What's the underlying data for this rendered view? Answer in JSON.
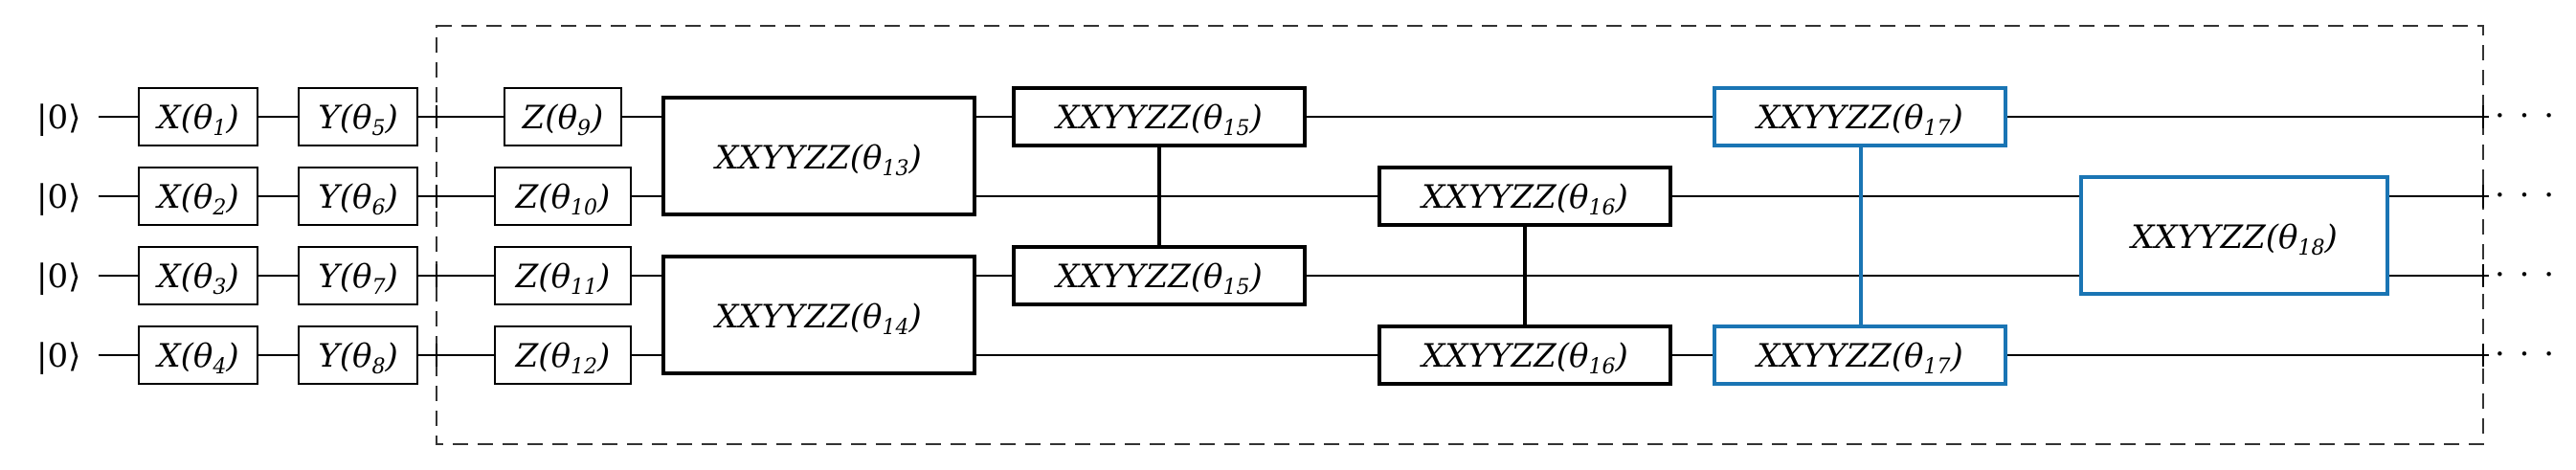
{
  "colors": {
    "wire": "#000000",
    "gate_border": "#000000",
    "highlight": "#1a75b4",
    "dashed": "#333333"
  },
  "inputs": [
    "|0⟩",
    "|0⟩",
    "|0⟩",
    "|0⟩"
  ],
  "continuation": "· · ·",
  "gates": {
    "rx": [
      {
        "name": "X",
        "param": "θ",
        "sub": "1"
      },
      {
        "name": "X",
        "param": "θ",
        "sub": "2"
      },
      {
        "name": "X",
        "param": "θ",
        "sub": "3"
      },
      {
        "name": "X",
        "param": "θ",
        "sub": "4"
      }
    ],
    "ry": [
      {
        "name": "Y",
        "param": "θ",
        "sub": "5"
      },
      {
        "name": "Y",
        "param": "θ",
        "sub": "6"
      },
      {
        "name": "Y",
        "param": "θ",
        "sub": "7"
      },
      {
        "name": "Y",
        "param": "θ",
        "sub": "8"
      }
    ],
    "rz": [
      {
        "name": "Z",
        "param": "θ",
        "sub": "9"
      },
      {
        "name": "Z",
        "param": "θ",
        "sub": "10"
      },
      {
        "name": "Z",
        "param": "θ",
        "sub": "11"
      },
      {
        "name": "Z",
        "param": "θ",
        "sub": "12"
      }
    ],
    "xxyyzz": [
      {
        "name": "XXYYZZ",
        "param": "θ",
        "sub": "13"
      },
      {
        "name": "XXYYZZ",
        "param": "θ",
        "sub": "14"
      },
      {
        "name": "XXYYZZ",
        "param": "θ",
        "sub": "15"
      },
      {
        "name": "XXYYZZ",
        "param": "θ",
        "sub": "15"
      },
      {
        "name": "XXYYZZ",
        "param": "θ",
        "sub": "16"
      },
      {
        "name": "XXYYZZ",
        "param": "θ",
        "sub": "16"
      },
      {
        "name": "XXYYZZ",
        "param": "θ",
        "sub": "17"
      },
      {
        "name": "XXYYZZ",
        "param": "θ",
        "sub": "17"
      },
      {
        "name": "XXYYZZ",
        "param": "θ",
        "sub": "18"
      }
    ]
  }
}
